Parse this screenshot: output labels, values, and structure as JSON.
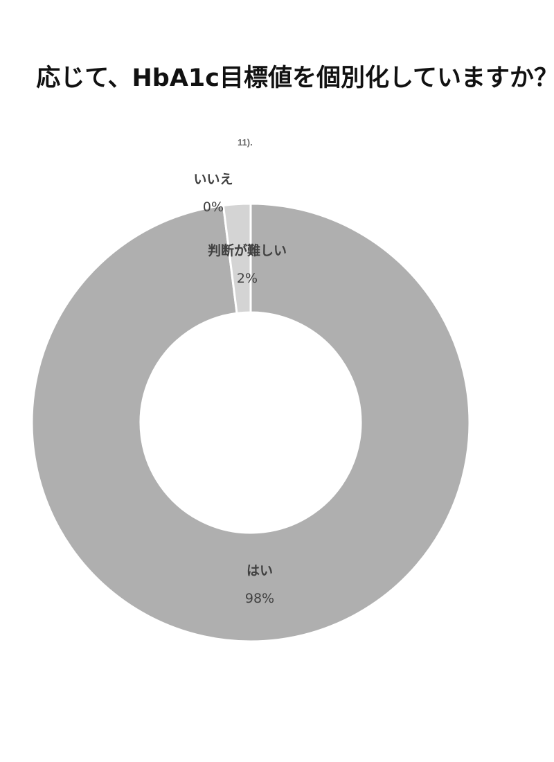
{
  "chart_data": {
    "type": "pie",
    "variant": "donut",
    "title": "応じて、HbA1c目標値を個別化していますか？",
    "subtitle": "11).",
    "categories": [
      "はい",
      "いいえ",
      "判断が難しい"
    ],
    "values": [
      98,
      0,
      2
    ],
    "labels": [
      "98%",
      "0%",
      "2%"
    ],
    "colors": [
      "#afafaf",
      "#afafaf",
      "#d4d4d4"
    ],
    "legend": "none"
  }
}
